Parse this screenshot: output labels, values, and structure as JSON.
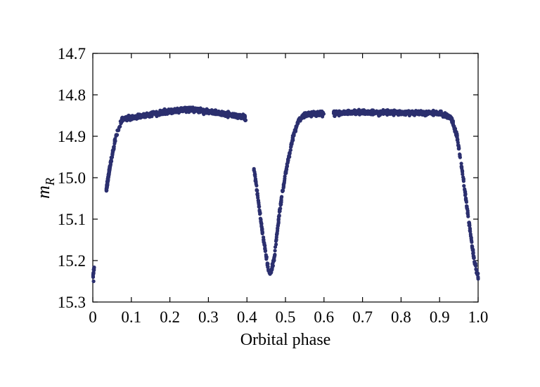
{
  "chart_data": {
    "type": "scatter",
    "title": "",
    "xlabel": "Orbital phase",
    "ylabel": {
      "main": "m",
      "subscript": "R"
    },
    "xlim": [
      0,
      1
    ],
    "ylim": [
      15.3,
      14.7
    ],
    "y_inverted": true,
    "x_ticks": [
      "0",
      "0.1",
      "0.2",
      "0.3",
      "0.4",
      "0.5",
      "0.6",
      "0.7",
      "0.8",
      "0.9",
      "1.0"
    ],
    "y_ticks": [
      "14.7",
      "14.8",
      "14.9",
      "15.0",
      "15.1",
      "15.2",
      "15.3"
    ],
    "grid": false,
    "legend": "none",
    "marker_color": "#2b2f6e",
    "light_curve_profile": [
      [
        0.0,
        15.24
      ],
      [
        0.035,
        15.03
      ],
      [
        0.045,
        14.97
      ],
      [
        0.06,
        14.9
      ],
      [
        0.075,
        14.86
      ],
      [
        0.1,
        14.855
      ],
      [
        0.15,
        14.847
      ],
      [
        0.2,
        14.84
      ],
      [
        0.25,
        14.835
      ],
      [
        0.3,
        14.84
      ],
      [
        0.35,
        14.847
      ],
      [
        0.395,
        14.855
      ],
      [
        0.42,
        14.99
      ],
      [
        0.44,
        15.13
      ],
      [
        0.455,
        15.22
      ],
      [
        0.46,
        15.235
      ],
      [
        0.47,
        15.2
      ],
      [
        0.485,
        15.08
      ],
      [
        0.5,
        14.99
      ],
      [
        0.52,
        14.9
      ],
      [
        0.535,
        14.86
      ],
      [
        0.55,
        14.848
      ],
      [
        0.6,
        14.845
      ],
      [
        0.7,
        14.842
      ],
      [
        0.8,
        14.843
      ],
      [
        0.9,
        14.845
      ],
      [
        0.93,
        14.855
      ],
      [
        0.945,
        14.9
      ],
      [
        0.96,
        14.99
      ],
      [
        0.975,
        15.1
      ],
      [
        0.99,
        15.2
      ],
      [
        1.0,
        15.24
      ]
    ],
    "gaps": [
      [
        0.397,
        0.418
      ],
      [
        0.6,
        0.625
      ]
    ],
    "point_count": 2200
  }
}
